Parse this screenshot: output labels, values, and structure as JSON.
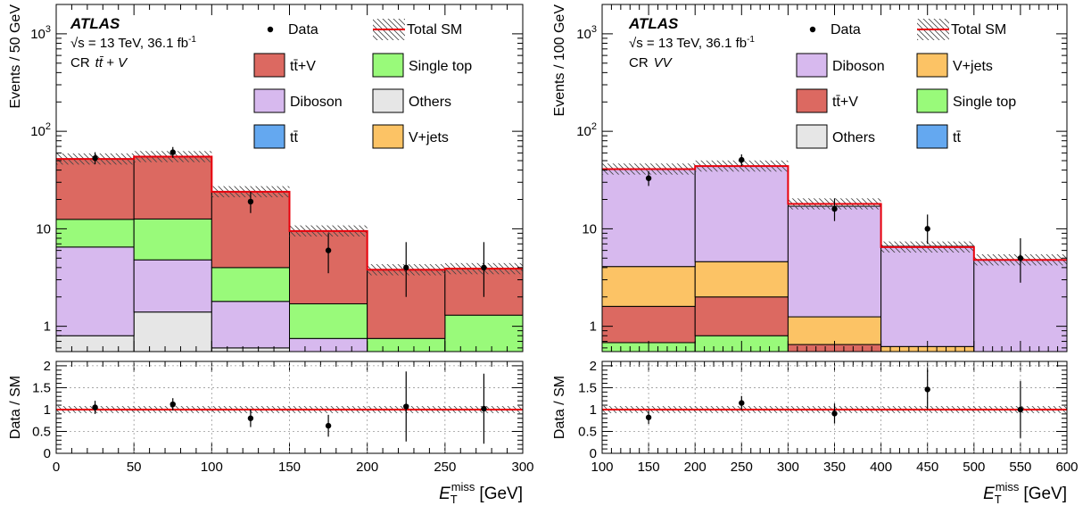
{
  "chart_data": [
    {
      "type": "bar",
      "stacked": true,
      "log_y": true,
      "atlas_label": "ATLAS",
      "energy_text": "√s = 13 TeV, 36.1 fb",
      "lumi_superscript": "-1",
      "region_prefix": "CR",
      "region_name": "tt̄ + V",
      "ylabel": "Events / 50 GeV",
      "ratio_ylabel": "Data / SM",
      "xlabel": "E",
      "xlabel_sub": "T",
      "xlabel_sup": "miss",
      "xlabel_unit": "[GeV]",
      "xlim": [
        0,
        300
      ],
      "ylim": [
        0.55,
        2000
      ],
      "ratio_ylim": [
        0,
        2.1
      ],
      "x_ticks": [
        "0",
        "50",
        "100",
        "150",
        "200",
        "250",
        "300"
      ],
      "y_ticks": [
        {
          "value": 1,
          "label": "1"
        },
        {
          "value": 10,
          "label": "10"
        },
        {
          "value": 100,
          "label": "10",
          "sup": "2"
        },
        {
          "value": 1000,
          "label": "10",
          "sup": "3"
        }
      ],
      "ratio_ticks": [
        "0",
        "0.5",
        "1",
        "1.5",
        "2"
      ],
      "bins": [
        0,
        50,
        100,
        150,
        200,
        250,
        300
      ],
      "stack": [
        {
          "name": "Others",
          "color": "#e6e6e6",
          "values": [
            0.8,
            1.4,
            0.6,
            0.4,
            0.05,
            0.05
          ]
        },
        {
          "name": "Diboson",
          "color": "#d7b9ee",
          "values": [
            5.7,
            3.4,
            1.2,
            0.35,
            0.2,
            0.2
          ]
        },
        {
          "name": "Single top",
          "color": "#99fa7a",
          "values": [
            6.0,
            7.8,
            2.2,
            0.95,
            0.5,
            1.05
          ]
        },
        {
          "name": "tt̄+V",
          "color": "#dc6961",
          "values": [
            39.5,
            42.4,
            20.0,
            7.8,
            3.05,
            2.6
          ]
        }
      ],
      "total": [
        52,
        55,
        24,
        9.5,
        3.8,
        3.9
      ],
      "data": {
        "x": [
          25,
          75,
          125,
          175,
          225,
          275
        ],
        "y": [
          53,
          61,
          19,
          6,
          4,
          4
        ],
        "err_up": [
          8,
          8,
          5,
          3,
          3.3,
          3.3
        ],
        "err_down": [
          7,
          7.5,
          4.5,
          2.5,
          2,
          2
        ]
      },
      "ratio": {
        "x": [
          25,
          75,
          125,
          175,
          225,
          275
        ],
        "y": [
          1.05,
          1.12,
          0.8,
          0.63,
          1.07,
          1.02
        ],
        "err": [
          0.15,
          0.14,
          0.2,
          0.25,
          0.8,
          0.8
        ]
      },
      "legend": {
        "data": "Data",
        "total": "Total SM",
        "entries": [
          {
            "name": "tt̄+V",
            "color": "#dc6961"
          },
          {
            "name": "Single top",
            "color": "#99fa7a"
          },
          {
            "name": "Diboson",
            "color": "#d7b9ee"
          },
          {
            "name": "Others",
            "color": "#e6e6e6"
          },
          {
            "name": "tt̄",
            "color": "#64a8f0"
          },
          {
            "name": "V+jets",
            "color": "#fcc365"
          }
        ]
      }
    },
    {
      "type": "bar",
      "stacked": true,
      "log_y": true,
      "atlas_label": "ATLAS",
      "energy_text": "√s = 13 TeV, 36.1 fb",
      "lumi_superscript": "-1",
      "region_prefix": "CR",
      "region_name": "VV",
      "ylabel": "Events / 100 GeV",
      "ratio_ylabel": "Data / SM",
      "xlabel": "E",
      "xlabel_sub": "T",
      "xlabel_sup": "miss",
      "xlabel_unit": "[GeV]",
      "xlim": [
        100,
        600
      ],
      "ylim": [
        0.55,
        2000
      ],
      "ratio_ylim": [
        0,
        2.1
      ],
      "x_ticks": [
        "100",
        "150",
        "200",
        "250",
        "300",
        "350",
        "400",
        "450",
        "500",
        "550",
        "600"
      ],
      "y_ticks": [
        {
          "value": 1,
          "label": "1"
        },
        {
          "value": 10,
          "label": "10"
        },
        {
          "value": 100,
          "label": "10",
          "sup": "2"
        },
        {
          "value": 1000,
          "label": "10",
          "sup": "3"
        }
      ],
      "ratio_ticks": [
        "0",
        "0.5",
        "1",
        "1.5",
        "2"
      ],
      "bins": [
        100,
        200,
        300,
        400,
        500,
        600
      ],
      "stack": [
        {
          "name": "Single top",
          "color": "#99fa7a",
          "values": [
            0.68,
            0.8,
            0.35,
            0.2,
            0.2
          ]
        },
        {
          "name": "tt̄+V",
          "color": "#dc6961",
          "values": [
            0.92,
            1.2,
            0.3,
            0.12,
            0.1
          ]
        },
        {
          "name": "V+jets",
          "color": "#fcc365",
          "values": [
            2.5,
            2.6,
            0.6,
            0.3,
            0.1
          ]
        },
        {
          "name": "Diboson",
          "color": "#d7b9ee",
          "values": [
            36.5,
            39.5,
            15.8,
            6.0,
            4.4
          ]
        }
      ],
      "total": [
        41,
        44,
        18,
        6.5,
        4.8
      ],
      "data": {
        "x": [
          150,
          250,
          350,
          450,
          550
        ],
        "y": [
          33,
          51,
          16,
          10,
          5
        ],
        "err_up": [
          6,
          7,
          4.5,
          4,
          3
        ],
        "err_down": [
          5.5,
          7,
          4,
          3,
          2.2
        ]
      },
      "ratio": {
        "x": [
          150,
          250,
          350,
          450,
          550
        ],
        "y": [
          0.82,
          1.15,
          0.91,
          1.46,
          1.0
        ],
        "err": [
          0.15,
          0.16,
          0.23,
          0.45,
          0.65
        ]
      },
      "legend": {
        "data": "Data",
        "total": "Total SM",
        "entries": [
          {
            "name": "Diboson",
            "color": "#d7b9ee"
          },
          {
            "name": "V+jets",
            "color": "#fcc365"
          },
          {
            "name": "tt̄+V",
            "color": "#dc6961"
          },
          {
            "name": "Single top",
            "color": "#99fa7a"
          },
          {
            "name": "Others",
            "color": "#e6e6e6"
          },
          {
            "name": "tt̄",
            "color": "#64a8f0"
          }
        ]
      }
    }
  ]
}
